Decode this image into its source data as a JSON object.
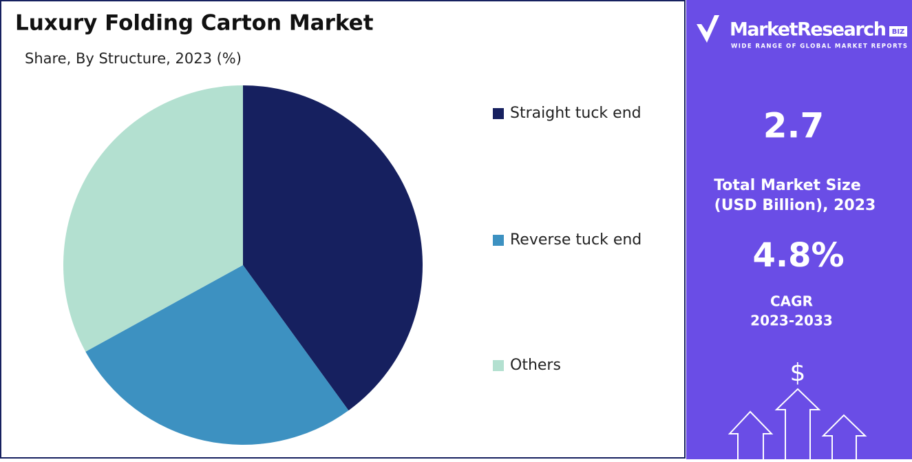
{
  "chart_data": {
    "type": "pie",
    "title": "Luxury Folding Carton Market",
    "subtitle": "Share, By Structure, 2023 (%)",
    "categories": [
      "Straight tuck end",
      "Reverse tuck end",
      "Others"
    ],
    "values": [
      40,
      27,
      33
    ],
    "colors": [
      "#16205f",
      "#3d91c1",
      "#b3e0d0"
    ]
  },
  "panel": {
    "brand": "MarketResearch",
    "brand_badge": "BIZ",
    "tagline": "WIDE RANGE OF GLOBAL MARKET REPORTS",
    "market_size": "2.7",
    "market_size_label": [
      "Total Market Size",
      "(USD Billion), 2023"
    ],
    "cagr": "4.8%",
    "cagr_label": [
      "CAGR",
      "2023-2033"
    ],
    "icon": "$"
  }
}
